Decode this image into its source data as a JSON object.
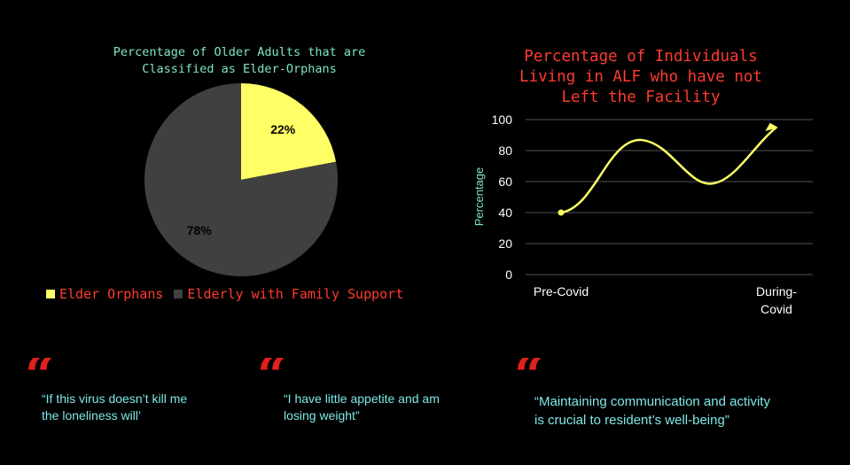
{
  "chart_data": [
    {
      "type": "pie",
      "title_lines": [
        "Percentage of Older Adults that are",
        "Classified as Elder-Orphans"
      ],
      "slices": [
        {
          "name": "Elder Orphans",
          "value": 22,
          "label": "22%",
          "color": "#ffff66"
        },
        {
          "name": "Elderly with Family Support",
          "value": 78,
          "label": "78%",
          "color": "#404040"
        }
      ],
      "legend_position": "bottom"
    },
    {
      "type": "line",
      "title_lines": [
        "Percentage of Individuals",
        "Living in ALF who have not",
        "Left the Facility"
      ],
      "ylabel": "Percentage",
      "ylim": [
        0,
        100
      ],
      "yticks": [
        0,
        20,
        40,
        60,
        80,
        100
      ],
      "categories": [
        "Pre-Covid",
        "During-Covid"
      ],
      "category_label_lines": [
        [
          "Pre-Covid"
        ],
        [
          "During-",
          "Covid"
        ]
      ],
      "series": [
        {
          "values": [
            40,
            95
          ],
          "color": "#ffff66"
        }
      ],
      "grid": true
    }
  ],
  "quotes": [
    {
      "mark": "“",
      "lines": [
        "“If this virus doesn’t kill me",
        "the loneliness will’"
      ]
    },
    {
      "mark": "“",
      "lines": [
        "“I have little appetite and am",
        "losing weight”"
      ]
    },
    {
      "mark": "“",
      "lines": [
        "“Maintaining communication and activity",
        "is crucial to resident’s well-being”"
      ]
    }
  ]
}
